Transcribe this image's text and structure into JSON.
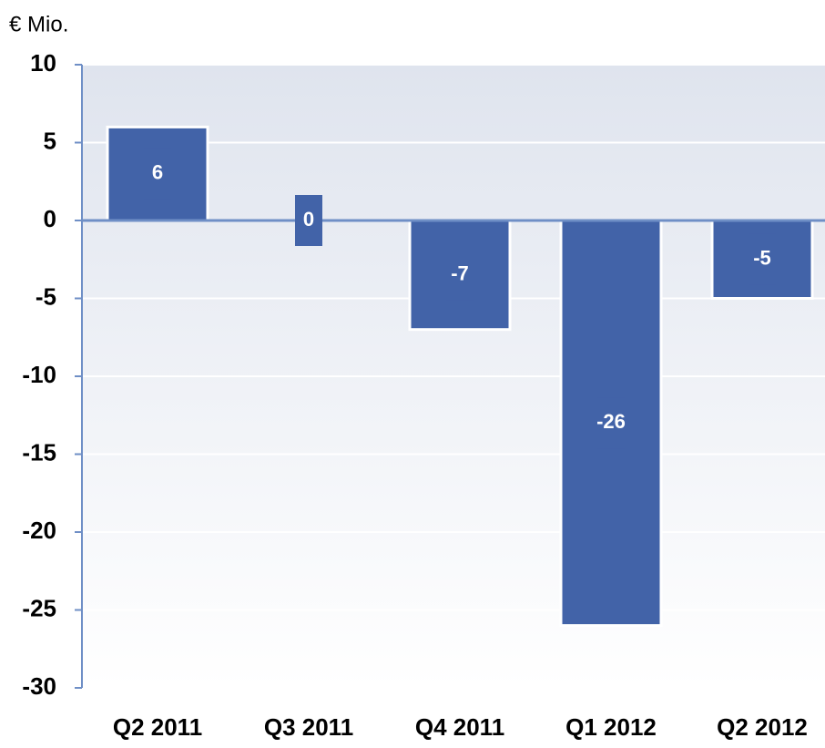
{
  "chart_data": {
    "type": "bar",
    "ylabel": "€ Mio.",
    "categories": [
      "Q2 2011",
      "Q3 2011",
      "Q4 2011",
      "Q1 2012",
      "Q2 2012"
    ],
    "values": [
      6,
      0,
      -7,
      -26,
      -5
    ],
    "color": "#4263a8",
    "ylim": [
      -30,
      10
    ],
    "yticks": [
      -30,
      -25,
      -20,
      -15,
      -10,
      -5,
      0,
      5,
      10
    ],
    "grid": true
  }
}
